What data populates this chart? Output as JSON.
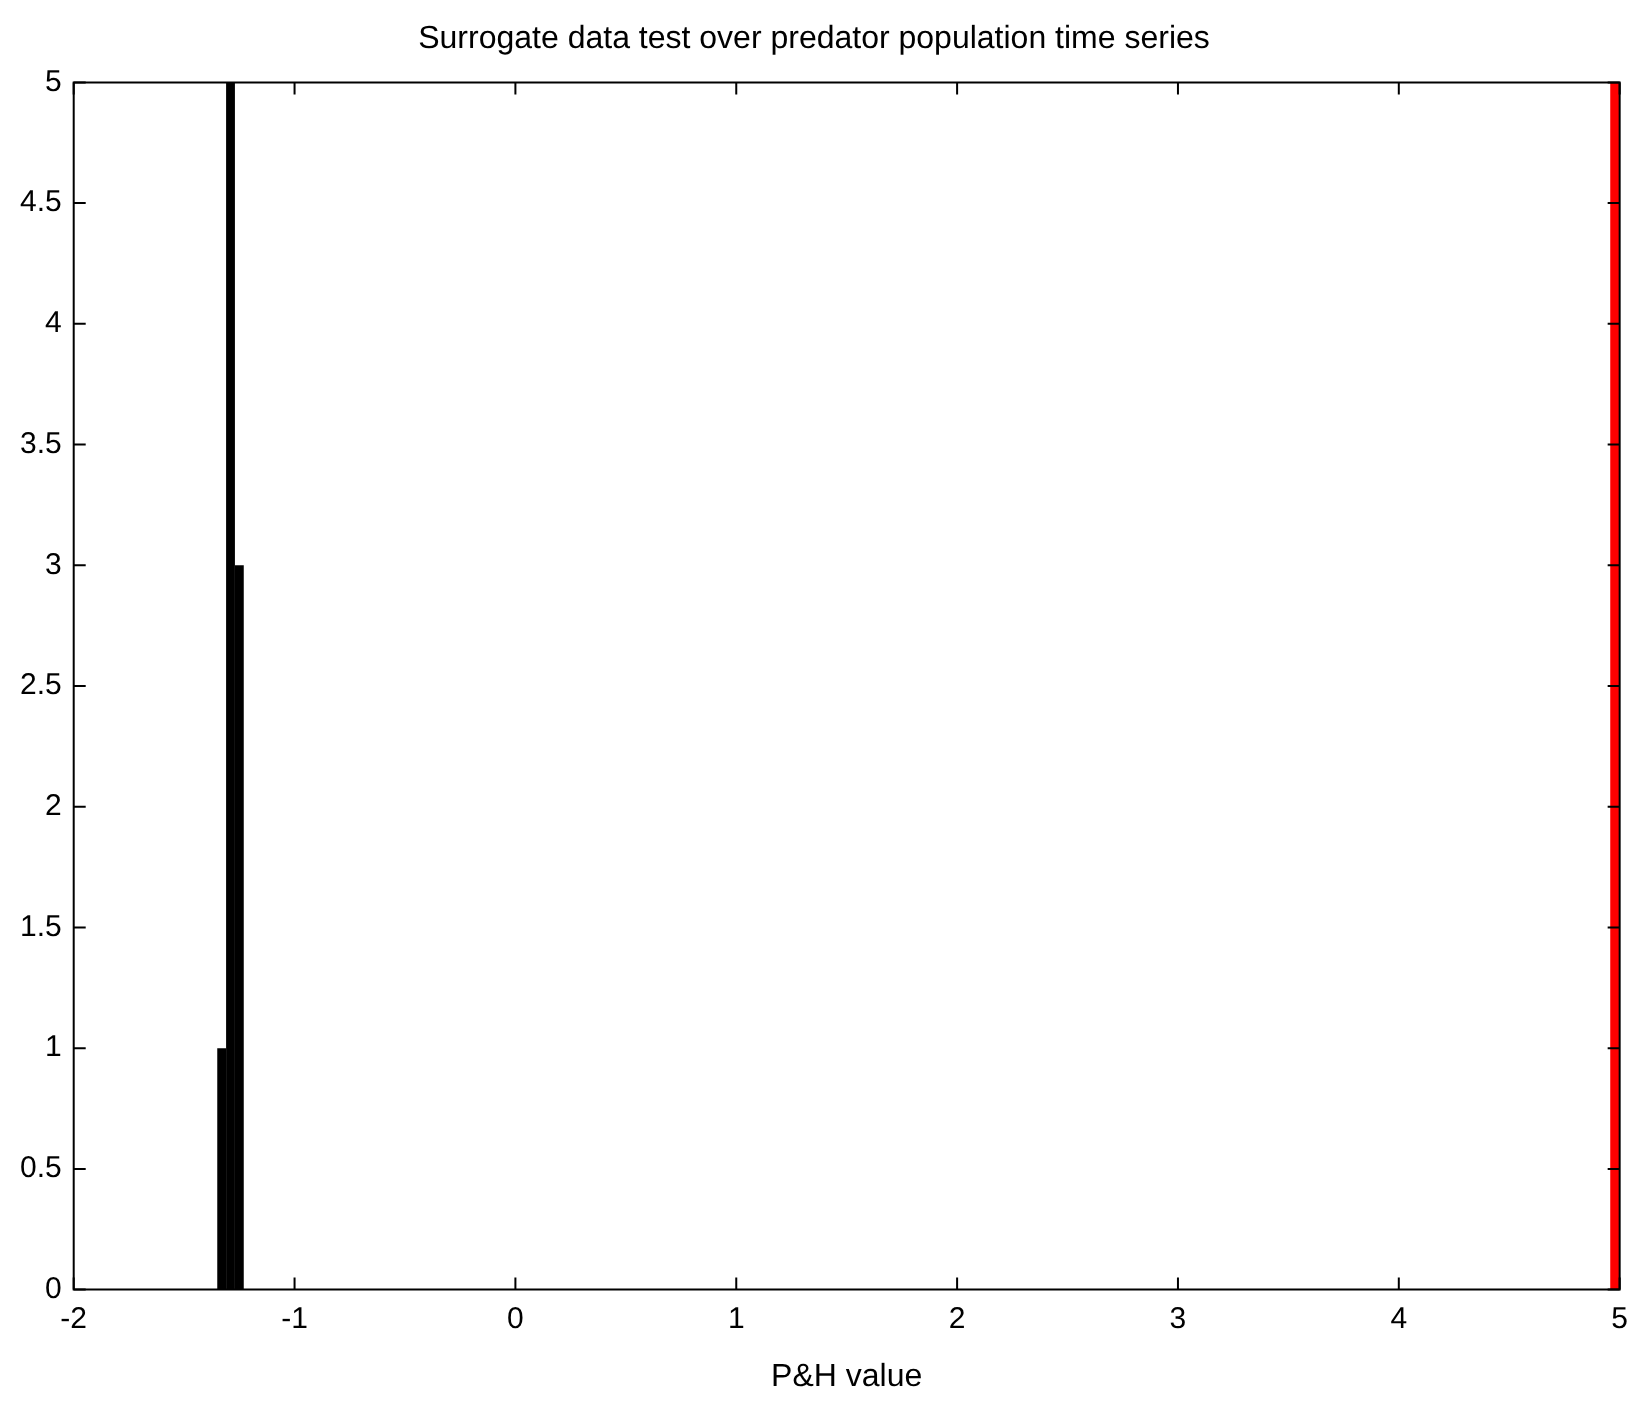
{
  "chart_data": {
    "type": "histogram",
    "title": "Surrogate data test over predator population time series",
    "xlabel": "P&H value",
    "bins": [
      -1.35,
      -1.31,
      -1.27,
      -1.23
    ],
    "values": [
      1,
      5,
      3
    ],
    "color": "#000000",
    "xlim": [
      -2,
      5
    ],
    "xticks": [
      -2,
      -1,
      0,
      1,
      2,
      3,
      4,
      5
    ],
    "ylim": [
      0,
      5
    ],
    "yticks": [
      0,
      0.5,
      1,
      1.5,
      2,
      2.5,
      3,
      3.5,
      4,
      4.5,
      5
    ],
    "ref_lines": [
      {
        "axis": "x",
        "value": 4.98,
        "color": "#ff0000"
      }
    ],
    "grid": false,
    "legend": false
  }
}
